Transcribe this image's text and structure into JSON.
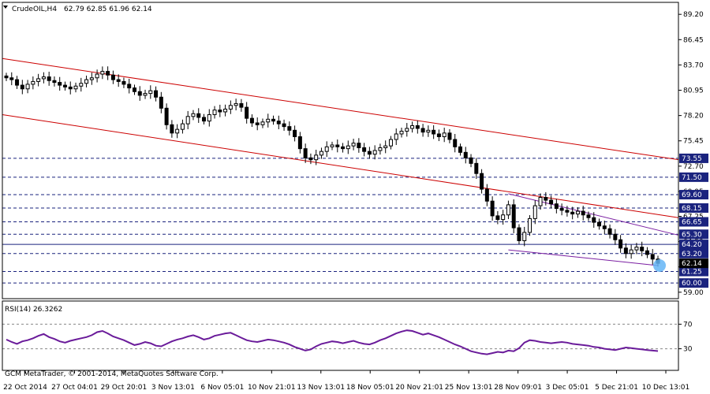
{
  "window": {
    "symbol_label": "CrudeOIL,H4",
    "ohlc_label": "62.79 62.85 61.96 62.14",
    "copyright": "GCM MetaTrader, © 2001-2014, MetaQuotes Software Corp."
  },
  "colors": {
    "background": "#ffffff",
    "candle": "#000000",
    "channel_line": "#cc0000",
    "triangle_line": "#7b1fa2",
    "level_line": "#1a237e",
    "label_bg": "#1a237e",
    "current_bg": "#000000",
    "rsi_line": "#6a1b9a",
    "highlight": "#64b5f6"
  },
  "chart_data": [
    {
      "type": "candlestick",
      "title": "CrudeOIL,H4",
      "ylim": [
        58.3,
        90.5
      ],
      "y_ticks": [
        "89.20",
        "86.45",
        "83.70",
        "80.95",
        "78.20",
        "75.45",
        "72.70",
        "69.95",
        "67.25",
        "64.50",
        "61.75",
        "59.00"
      ],
      "x_ticks": [
        "22 Oct 2014",
        "27 Oct 04:01",
        "29 Oct 20:01",
        "3 Nov 13:01",
        "6 Nov 05:01",
        "10 Nov 21:01",
        "13 Nov 13:01",
        "18 Nov 05:01",
        "20 Nov 21:01",
        "25 Nov 13:01",
        "28 Nov 09:01",
        "3 Dec 05:01",
        "5 Dec 21:01",
        "10 Dec 13:01"
      ],
      "close_profile": [
        82.3,
        82.1,
        81.5,
        81.1,
        81.6,
        81.9,
        82.2,
        82.4,
        82.0,
        81.8,
        81.5,
        81.3,
        81.1,
        81.4,
        81.7,
        82.1,
        82.3,
        82.7,
        83.0,
        82.6,
        82.1,
        81.9,
        81.6,
        81.2,
        80.8,
        80.4,
        80.6,
        80.9,
        80.2,
        79.0,
        77.2,
        76.3,
        76.7,
        77.3,
        78.1,
        78.4,
        78.0,
        77.6,
        78.3,
        78.8,
        78.6,
        78.9,
        79.3,
        79.5,
        79.1,
        77.9,
        77.4,
        77.2,
        77.5,
        77.8,
        77.6,
        77.3,
        77.0,
        76.6,
        75.9,
        74.6,
        73.6,
        73.4,
        73.9,
        74.3,
        74.8,
        75.0,
        74.8,
        74.6,
        74.9,
        75.2,
        74.7,
        74.3,
        74.0,
        74.4,
        74.7,
        74.9,
        75.6,
        76.2,
        76.5,
        76.8,
        77.1,
        76.8,
        76.4,
        76.6,
        76.2,
        75.9,
        76.3,
        75.6,
        74.8,
        74.2,
        73.6,
        73.0,
        71.9,
        70.2,
        68.9,
        67.3,
        66.9,
        67.4,
        68.5,
        66.0,
        64.6,
        65.5,
        67.0,
        68.4,
        69.3,
        69.0,
        68.6,
        68.1,
        67.9,
        67.7,
        67.5,
        67.8,
        67.4,
        67.1,
        66.6,
        66.2,
        65.9,
        65.3,
        64.7,
        63.8,
        63.2,
        63.6,
        63.9,
        63.5,
        63.1,
        62.6,
        62.14
      ],
      "levels": [
        {
          "label": "73.55",
          "value": 73.55,
          "style": "dashed"
        },
        {
          "label": "71.50",
          "value": 71.5,
          "style": "dashed"
        },
        {
          "label": "69.60",
          "value": 69.6,
          "style": "dashed"
        },
        {
          "label": "68.15",
          "value": 68.15,
          "style": "dashed"
        },
        {
          "label": "66.65",
          "value": 66.65,
          "style": "dashed"
        },
        {
          "label": "65.30",
          "value": 65.3,
          "style": "dashed"
        },
        {
          "label": "64.20",
          "value": 64.2,
          "style": "solid"
        },
        {
          "label": "63.20",
          "value": 63.2,
          "style": "dashed"
        },
        {
          "label": "61.25",
          "value": 61.25,
          "style": "dashed"
        },
        {
          "label": "60.00",
          "value": 60.0,
          "style": "dashed"
        }
      ],
      "current_price": {
        "label": "62.14",
        "value": 62.14
      },
      "channel": {
        "upper": [
          84.4,
          73.4
        ],
        "lower": [
          78.3,
          67.1
        ]
      },
      "triangle": {
        "upper": [
          69.7,
          65.2
        ],
        "lower": [
          63.6,
          61.9
        ]
      }
    },
    {
      "type": "line",
      "title": "RSI(14) 26.3262",
      "ylim": [
        0,
        100
      ],
      "y_ticks": [
        "70",
        "30"
      ],
      "y_tick_values": [
        70,
        30
      ],
      "series": [
        {
          "name": "RSI(14)",
          "values": [
            45,
            41,
            38,
            42,
            44,
            47,
            51,
            54,
            49,
            46,
            42,
            40,
            43,
            45,
            47,
            49,
            52,
            57,
            59,
            55,
            50,
            47,
            44,
            40,
            36,
            38,
            41,
            39,
            35,
            34,
            38,
            42,
            45,
            47,
            50,
            52,
            49,
            45,
            47,
            51,
            53,
            55,
            56,
            52,
            48,
            44,
            42,
            41,
            43,
            45,
            44,
            42,
            40,
            37,
            33,
            30,
            27,
            29,
            34,
            38,
            40,
            42,
            41,
            39,
            41,
            43,
            40,
            38,
            37,
            40,
            44,
            47,
            51,
            55,
            58,
            60,
            59,
            56,
            53,
            55,
            52,
            49,
            45,
            41,
            37,
            34,
            30,
            26,
            24,
            22,
            21,
            23,
            25,
            24,
            27,
            26,
            31,
            40,
            44,
            43,
            41,
            40,
            39,
            40,
            41,
            40,
            38,
            37,
            36,
            35,
            33,
            32,
            30,
            29,
            28,
            30,
            32,
            31,
            30,
            29,
            28,
            27,
            26.3
          ]
        }
      ]
    }
  ]
}
